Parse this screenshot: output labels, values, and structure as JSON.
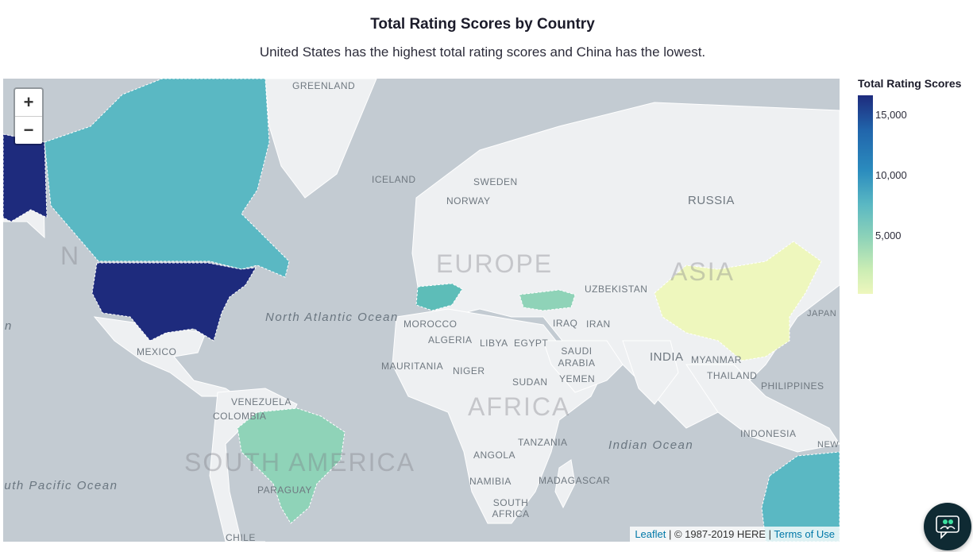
{
  "header": {
    "title": "Total Rating Scores by Country",
    "subtitle": "United States has the highest total rating scores and China has the lowest."
  },
  "map": {
    "zoom_in": "+",
    "zoom_out": "−",
    "labels": {
      "greenland": "GREENLAND",
      "iceland": "ICELAND",
      "sweden": "SWEDEN",
      "norway": "NORWAY",
      "russia": "RUSSIA",
      "europe": "EUROPE",
      "asia": "ASIA",
      "uzbekistan": "UZBEKISTAN",
      "morocco": "MOROCCO",
      "algeria": "ALGERIA",
      "libya": "LIBYA",
      "egypt": "EGYPT",
      "iraq": "IRAQ",
      "iran": "IRAN",
      "saudi": "SAUDI ARABIA",
      "yemen": "YEMEN",
      "india": "INDIA",
      "myanmar": "MYANMAR",
      "thailand": "THAILAND",
      "philippines": "PHILIPPINES",
      "indonesia": "INDONESIA",
      "mauritania": "MAURITANIA",
      "niger": "NIGER",
      "sudan": "SUDAN",
      "africa": "AFRICA",
      "tanzania": "TANZANIA",
      "angola": "ANGOLA",
      "namibia": "NAMIBIA",
      "madagascar": "MADAGASCAR",
      "south_africa": "SOUTH AFRICA",
      "mexico": "MEXICO",
      "venezuela": "VENEZUELA",
      "colombia": "COLOMBIA",
      "paraguay": "PARAGUAY",
      "chile": "CHILE",
      "south_america": "SOUTH AMERICA",
      "north_america_fragment": "N",
      "north_atlantic": "North Atlantic Ocean",
      "indian_ocean": "Indian Ocean",
      "south_pacific": "South Pacific Ocean",
      "left_fragment": "n",
      "japan": "JAPAN",
      "new_fragment": "NEW"
    },
    "attribution": {
      "leaflet": "Leaflet",
      "sep1": " | © 1987-2019 HERE | ",
      "terms": "Terms of Use"
    },
    "choropleth": [
      {
        "country": "United States",
        "color": "#1e2b7d"
      },
      {
        "country": "Canada",
        "color": "#5ab8c3"
      },
      {
        "country": "Australia",
        "color": "#5ab8c3"
      },
      {
        "country": "Spain",
        "color": "#5dbdb8"
      },
      {
        "country": "Turkey",
        "color": "#8fd3b8"
      },
      {
        "country": "Brazil",
        "color": "#8fd3b8"
      },
      {
        "country": "China",
        "color": "#eef7bd"
      }
    ]
  },
  "legend": {
    "title": "Total Rating Scores",
    "ticks": [
      "15,000",
      "10,000",
      "5,000"
    ]
  },
  "chat": {
    "icon": "chat-support-icon"
  }
}
